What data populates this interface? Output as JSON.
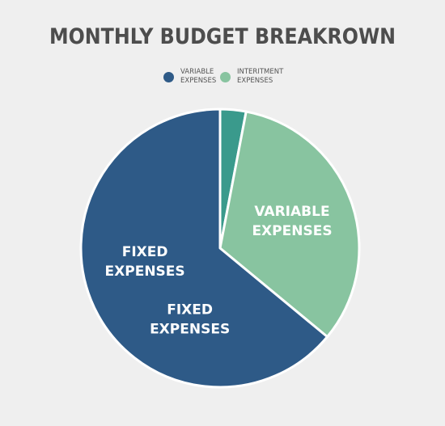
{
  "chart_data": {
    "type": "pie",
    "title": "MONTHLY BUDGET BREAKROWN",
    "legend": [
      {
        "label_line1": "VARIABLE",
        "label_line2": "EXPENSES",
        "color": "#2e5a87"
      },
      {
        "label_line1": "INTERITMENT",
        "label_line2": "EXPENSES",
        "color": "#88c4a0"
      }
    ],
    "slices": [
      {
        "name": "",
        "value": 3,
        "color": "#3a9a8c",
        "label_lines": []
      },
      {
        "name": "VARIABLE EXPENSES",
        "value": 33,
        "color": "#88c4a0",
        "label_lines": [
          "VARIABLE",
          "EXPENSES"
        ]
      },
      {
        "name": "FIXED EXPENSES",
        "value": 64,
        "color": "#2e5a87",
        "label_lines": [
          "FIXED",
          "EXPENSES"
        ]
      }
    ],
    "extra_labels": [
      {
        "lines": [
          "FIXED",
          "EXPENSES"
        ]
      }
    ],
    "legend_position": "top"
  }
}
